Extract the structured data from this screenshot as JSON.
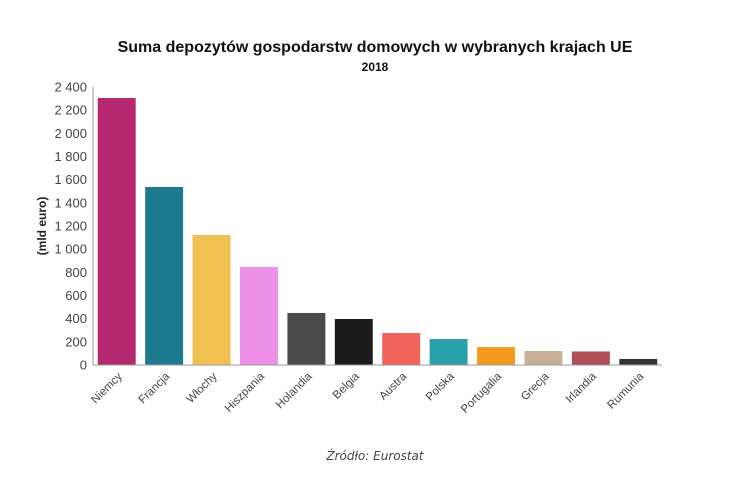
{
  "chart_data": {
    "type": "bar",
    "title": "Suma depozytów gospodarstw domowych w wybranych krajach UE",
    "subtitle": "2018",
    "xlabel": "",
    "ylabel": "(mld euro)",
    "ylim": [
      0,
      2400
    ],
    "yticks": [
      0,
      200,
      400,
      600,
      800,
      1000,
      1200,
      1400,
      1600,
      1800,
      2000,
      2200,
      2400
    ],
    "ytick_labels": [
      "0",
      "200",
      "400",
      "600",
      "800",
      "1 000",
      "1 200",
      "1 400",
      "1 600",
      "1 800",
      "2 000",
      "2 200",
      "2 400"
    ],
    "grid": false,
    "legend": "none",
    "categories": [
      "Niemcy",
      "Francja",
      "Włochy",
      "Hiszpania",
      "Holandia",
      "Belgia",
      "Austra",
      "Polska",
      "Portugalia",
      "Grecja",
      "Irlandia",
      "Rumunia"
    ],
    "values": [
      2305,
      1537,
      1122,
      846,
      449,
      397,
      276,
      224,
      155,
      121,
      117,
      52
    ],
    "colors": [
      "#b5286f",
      "#1e7a8f",
      "#f0c050",
      "#ee90e8",
      "#4a4a4a",
      "#1a1a1a",
      "#f0645c",
      "#2aa0aa",
      "#f39a1e",
      "#c8b096",
      "#b14e58",
      "#333333"
    ]
  },
  "footer": {
    "source": "Źródło: Eurostat"
  },
  "colors": {
    "axis": "#999999",
    "text": "#444444"
  }
}
